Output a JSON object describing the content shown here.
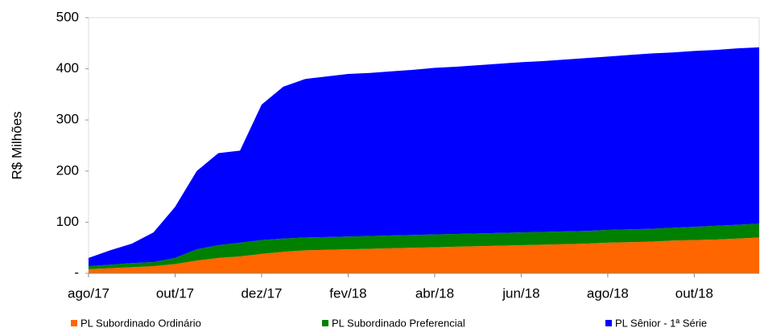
{
  "chart_data": {
    "type": "stacked_area",
    "y_label": "R$ Milhões",
    "categories": [
      "ago/17",
      null,
      null,
      null,
      "out/17",
      null,
      null,
      null,
      "dez/17",
      null,
      null,
      null,
      "fev/18",
      null,
      null,
      null,
      "abr/18",
      null,
      null,
      null,
      "jun/18",
      null,
      null,
      null,
      "ago/18",
      null,
      null,
      null,
      "out/18",
      null,
      null,
      null
    ],
    "series": [
      {
        "name": "PL Subordinado Ordinário",
        "color": "#ff6600",
        "values": [
          8,
          10,
          12,
          14,
          18,
          25,
          30,
          33,
          38,
          42,
          45,
          46,
          47,
          48,
          49,
          50,
          51,
          52,
          53,
          54,
          55,
          56,
          57,
          58,
          60,
          61,
          62,
          64,
          65,
          66,
          68,
          70
        ]
      },
      {
        "name": "PL Subordinado Preferencial",
        "color": "#008000",
        "values": [
          6,
          7,
          8,
          8,
          12,
          22,
          25,
          27,
          27,
          26,
          25,
          25,
          25,
          25,
          25,
          25,
          25,
          25,
          25,
          25,
          25,
          25,
          25,
          25,
          25,
          25,
          25,
          25,
          26,
          27,
          27,
          27
        ]
      },
      {
        "name": "PL Sênior - 1ª Série",
        "color": "#0000ff",
        "values": [
          16,
          28,
          38,
          58,
          100,
          153,
          180,
          180,
          265,
          297,
          310,
          314,
          318,
          319,
          321,
          323,
          326,
          327,
          329,
          331,
          333,
          334,
          336,
          338,
          339,
          341,
          343,
          343,
          344,
          344,
          345,
          345
        ]
      }
    ],
    "ylim": [
      0,
      500
    ],
    "yticks": [
      {
        "value": 0,
        "label": "-"
      },
      100,
      200,
      300,
      400,
      500
    ],
    "grid": false,
    "legend": "bottom"
  }
}
